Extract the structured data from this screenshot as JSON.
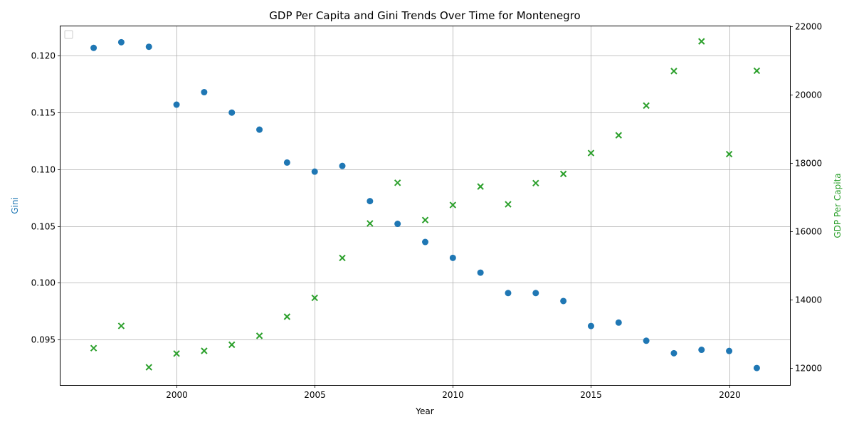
{
  "chart_data": {
    "type": "scatter",
    "title": "GDP Per Capita and Gini Trends Over Time for Montenegro",
    "xlabel": "Year",
    "ylabel_left": "Gini",
    "ylabel_right": "GDP Per Capita",
    "xlim": [
      1995.8,
      2022.2
    ],
    "ylim_left": [
      0.091,
      0.1226
    ],
    "ylim_right": [
      11500,
      22000
    ],
    "x_ticks": [
      2000,
      2005,
      2010,
      2015,
      2020
    ],
    "y_ticks_left": [
      0.095,
      0.1,
      0.105,
      0.11,
      0.115,
      0.12
    ],
    "y_ticks_right": [
      12000,
      14000,
      16000,
      18000,
      20000,
      22000
    ],
    "grid": true,
    "legend": "top-left (empty)",
    "colors": {
      "gini": "#1f77b4",
      "gdp": "#2ca02c"
    },
    "series": [
      {
        "axis": "left",
        "marker": "circle",
        "x": [
          1997,
          1998,
          1999,
          2000,
          2001,
          2002,
          2003,
          2004,
          2005,
          2006,
          2007,
          2008,
          2009,
          2010,
          2011,
          2012,
          2013,
          2014,
          2015,
          2016,
          2017,
          2018,
          2019,
          2020,
          2021
        ],
        "values": [
          0.1207,
          0.1212,
          0.1208,
          0.1157,
          0.1168,
          0.115,
          0.1135,
          0.1106,
          0.1098,
          0.1103,
          0.1072,
          0.1052,
          0.1036,
          0.1022,
          0.1009,
          0.0991,
          0.0991,
          0.0984,
          0.0962,
          0.0965,
          0.0949,
          0.0938,
          0.0941,
          0.094,
          0.0925
        ]
      },
      {
        "axis": "right",
        "marker": "x",
        "x": [
          1997,
          1998,
          1999,
          2000,
          2001,
          2002,
          2003,
          2004,
          2005,
          2006,
          2007,
          2008,
          2009,
          2010,
          2011,
          2012,
          2013,
          2014,
          2015,
          2016,
          2017,
          2018,
          2019,
          2020,
          2021
        ],
        "values": [
          12580,
          13230,
          12020,
          12420,
          12500,
          12680,
          12940,
          13500,
          14050,
          15220,
          16230,
          17420,
          16330,
          16770,
          17310,
          16790,
          17410,
          17680,
          18290,
          18810,
          19680,
          20690,
          21560,
          18260,
          20700
        ]
      }
    ]
  }
}
